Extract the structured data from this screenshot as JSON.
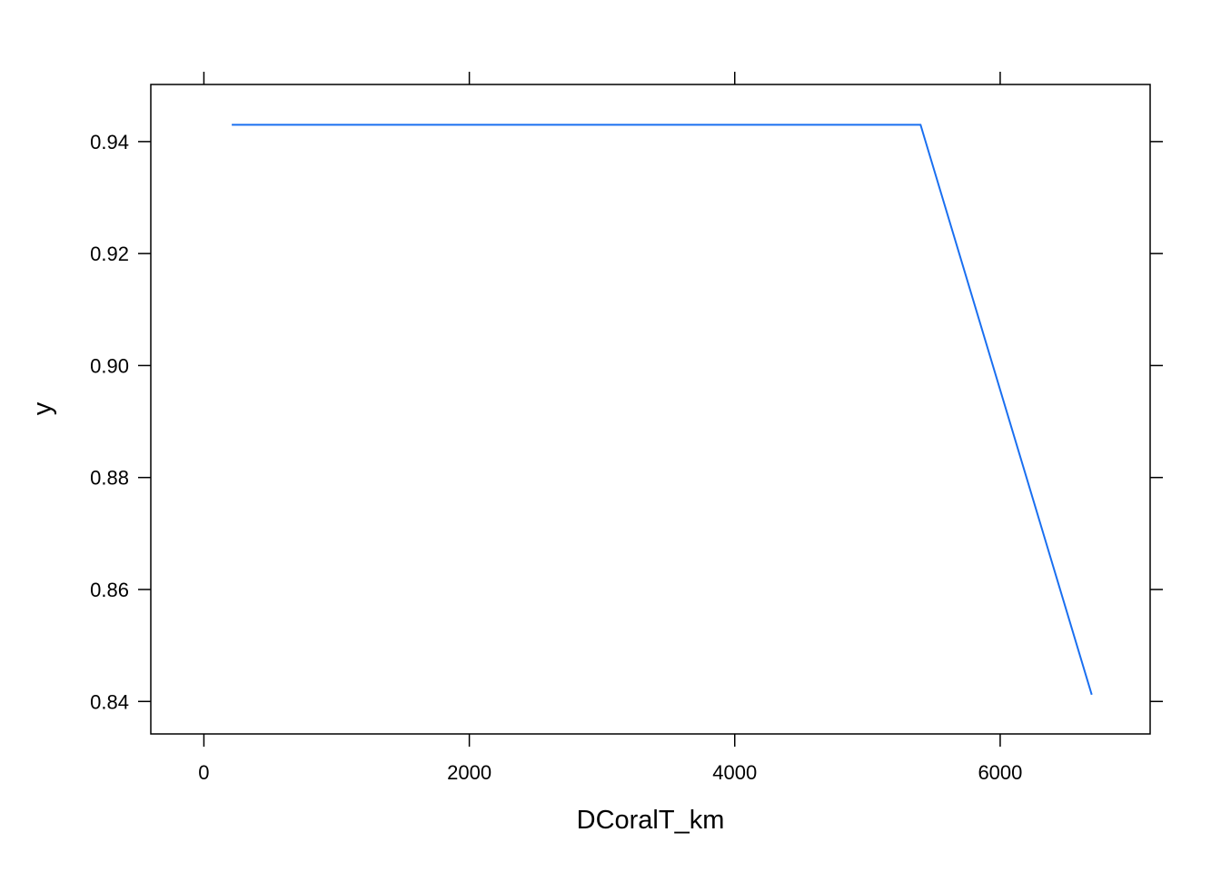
{
  "chart_data": {
    "type": "line",
    "title": "",
    "xlabel": "DCoralT_km",
    "ylabel": "y",
    "xlim": [
      -400,
      7130
    ],
    "ylim": [
      0.8342,
      0.9502
    ],
    "x_ticks": [
      0,
      2000,
      4000,
      6000
    ],
    "y_ticks": [
      0.84,
      0.86,
      0.88,
      0.9,
      0.92,
      0.94
    ],
    "x_tick_labels": [
      "0",
      "2000",
      "4000",
      "6000"
    ],
    "y_tick_labels": [
      "0.84",
      "0.86",
      "0.88",
      "0.90",
      "0.92",
      "0.94"
    ],
    "grid": false,
    "series": [
      {
        "color": "#1a6ff0",
        "x": [
          210,
          5400,
          6690
        ],
        "y": [
          0.943,
          0.943,
          0.8412
        ]
      }
    ]
  }
}
